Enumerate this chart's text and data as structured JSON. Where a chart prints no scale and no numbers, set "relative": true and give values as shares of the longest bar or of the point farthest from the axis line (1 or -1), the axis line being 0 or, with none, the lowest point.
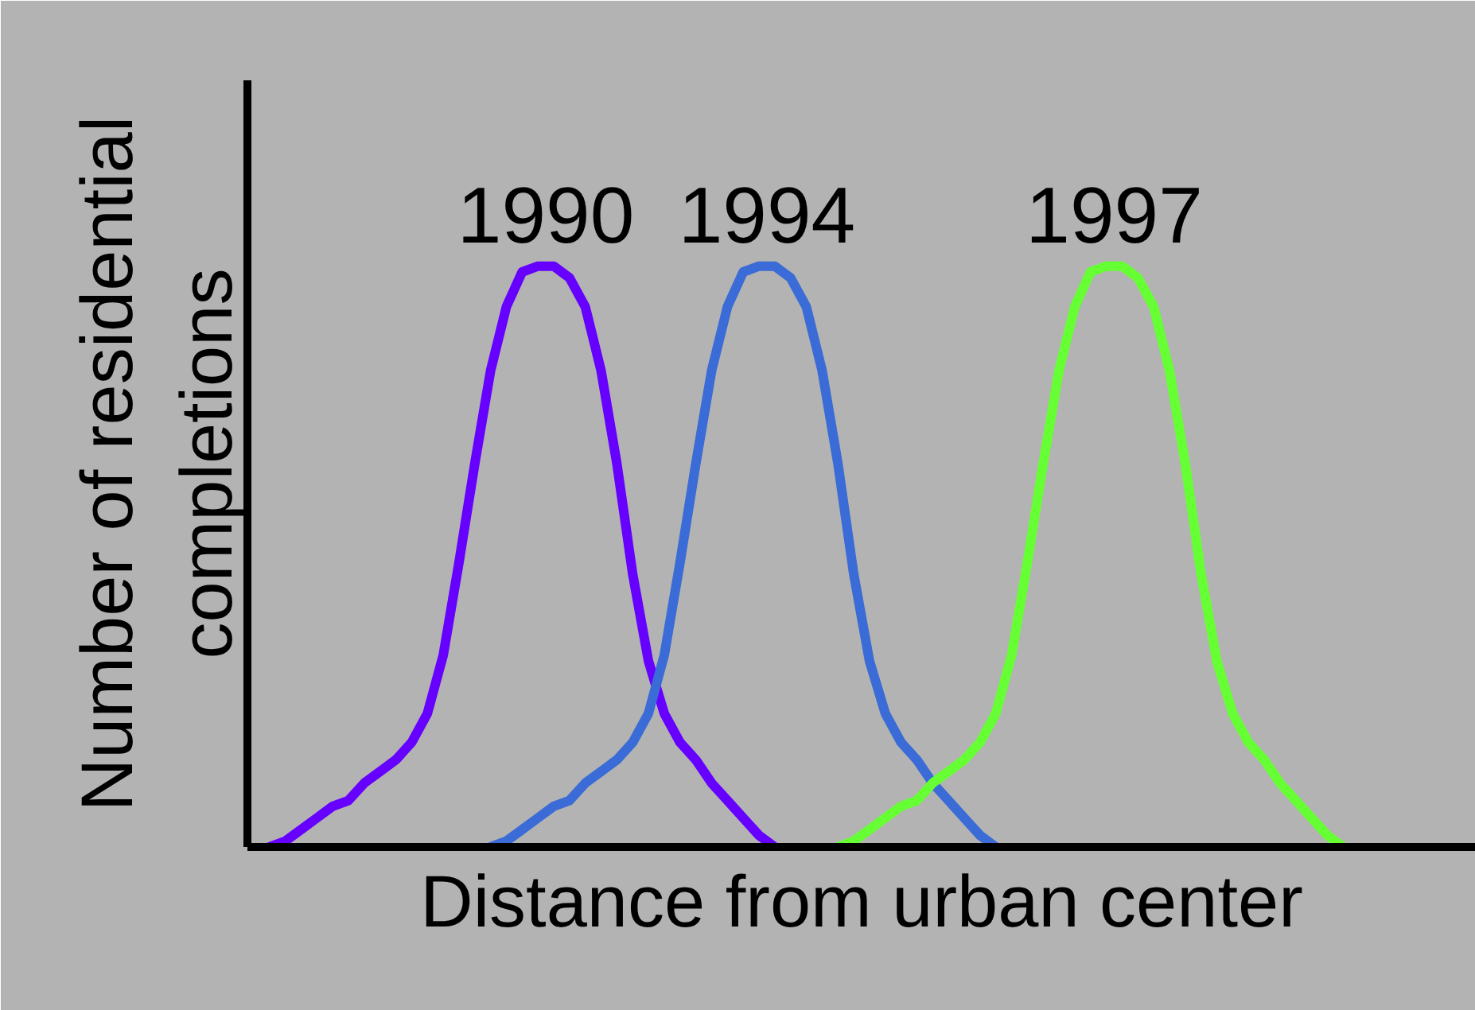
{
  "chart_data": {
    "type": "line",
    "relative": true,
    "xlabel": "Distance from urban center",
    "ylabel": "Number of residential\ncompletions",
    "categories": [
      null,
      null,
      null,
      null,
      null,
      null,
      null,
      null,
      null,
      null,
      null,
      null,
      null,
      null,
      null,
      null,
      null,
      null,
      null,
      null,
      null,
      null,
      null,
      null,
      null,
      null,
      null,
      null,
      null,
      null,
      null,
      null,
      null,
      null,
      null,
      null,
      null,
      null,
      null,
      null,
      null,
      null,
      null,
      null,
      null,
      null,
      null,
      null,
      null,
      null,
      null,
      null,
      null,
      null,
      null,
      null,
      null,
      null,
      null,
      null,
      null,
      null,
      null,
      null,
      null,
      null,
      null,
      null,
      null,
      null,
      null,
      null,
      null,
      null,
      null,
      null,
      null,
      null
    ],
    "series": [
      {
        "name": "1990",
        "color": "#6600ff",
        "values": [
          null,
          0,
          0.01,
          0.03,
          0.05,
          0.07,
          0.08,
          0.11,
          0.13,
          0.15,
          0.18,
          0.23,
          0.33,
          0.49,
          0.66,
          0.82,
          0.93,
          0.99,
          1,
          1,
          0.98,
          0.93,
          0.82,
          0.66,
          0.47,
          0.32,
          0.23,
          0.18,
          0.15,
          0.11,
          0.08,
          0.05,
          0.02,
          0,
          null,
          null,
          null,
          null,
          null,
          null,
          null,
          null,
          null,
          null,
          null,
          null,
          null,
          null,
          null,
          null,
          null,
          null,
          null,
          null,
          null,
          null,
          null,
          null,
          null,
          null,
          null,
          null,
          null,
          null,
          null,
          null,
          null,
          null,
          null,
          null,
          null,
          null,
          null,
          null,
          null,
          null,
          null,
          null
        ]
      },
      {
        "name": "1994",
        "color": "#3a6bd6",
        "values": [
          null,
          null,
          null,
          null,
          null,
          null,
          null,
          null,
          null,
          null,
          null,
          null,
          null,
          null,
          null,
          0,
          0.01,
          0.03,
          0.05,
          0.07,
          0.08,
          0.11,
          0.13,
          0.15,
          0.18,
          0.23,
          0.33,
          0.49,
          0.66,
          0.82,
          0.93,
          0.99,
          1,
          1,
          0.98,
          0.93,
          0.82,
          0.66,
          0.47,
          0.32,
          0.23,
          0.18,
          0.15,
          0.11,
          0.08,
          0.05,
          0.02,
          0,
          null,
          null,
          null,
          null,
          null,
          null,
          null,
          null,
          null,
          null,
          null,
          null,
          null,
          null,
          null,
          null,
          null,
          null,
          null,
          null,
          null,
          null,
          null,
          null,
          null,
          null,
          null,
          null,
          null,
          null
        ]
      },
      {
        "name": "1997",
        "color": "#66ff33",
        "values": [
          null,
          null,
          null,
          null,
          null,
          null,
          null,
          null,
          null,
          null,
          null,
          null,
          null,
          null,
          null,
          null,
          null,
          null,
          null,
          null,
          null,
          null,
          null,
          null,
          null,
          null,
          null,
          null,
          null,
          null,
          null,
          null,
          null,
          null,
          null,
          null,
          null,
          0,
          0.01,
          0.03,
          0.05,
          0.07,
          0.08,
          0.11,
          0.13,
          0.15,
          0.18,
          0.23,
          0.33,
          0.49,
          0.66,
          0.82,
          0.93,
          0.99,
          1,
          1,
          0.98,
          0.93,
          0.82,
          0.66,
          0.47,
          0.32,
          0.23,
          0.18,
          0.15,
          0.11,
          0.08,
          0.05,
          0.02,
          0,
          null,
          null,
          null,
          null,
          null,
          null,
          null,
          null
        ]
      }
    ],
    "legend": false
  }
}
